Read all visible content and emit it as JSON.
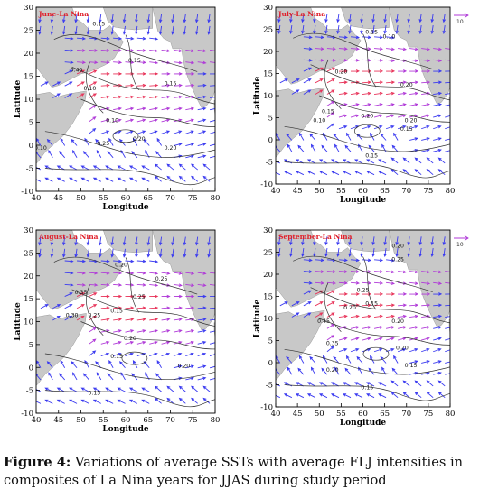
{
  "caption": {
    "label": "Figure 4:",
    "text": " Variations of average SSTs with average FLJ intensities in composites of La Nina years for JJAS during study period"
  },
  "colors": {
    "land": "#c8c8c8",
    "vector_blue": "#3a3af0",
    "vector_red": "#e8345a",
    "vector_magenta": "#b03ad8",
    "panel_title": "#e0202a",
    "contour": "#333333"
  },
  "chart_data": [
    {
      "type": "contour+vector",
      "title": "June-La Nina",
      "xlabel": "Longitude",
      "ylabel": "Latitude",
      "xlim": [
        40,
        80
      ],
      "ylim": [
        -10,
        30
      ],
      "xticks": [
        40,
        45,
        50,
        55,
        60,
        65,
        70,
        75,
        80
      ],
      "yticks": [
        30,
        25,
        20,
        15,
        10,
        5,
        0,
        -5,
        -10
      ],
      "reference_vector": null,
      "contour_labels": [
        {
          "value": "0.15",
          "lon": 54,
          "lat": 26
        },
        {
          "value": "0.15",
          "lon": 62,
          "lat": 18
        },
        {
          "value": "0.45",
          "lon": 49,
          "lat": 16
        },
        {
          "value": "0.10",
          "lon": 52,
          "lat": 12
        },
        {
          "value": "0.15",
          "lon": 70,
          "lat": 13
        },
        {
          "value": "0.10",
          "lon": 57,
          "lat": 5
        },
        {
          "value": "0.20",
          "lon": 63,
          "lat": 1
        },
        {
          "value": "0.25",
          "lon": 55,
          "lat": 0
        },
        {
          "value": "0.20",
          "lon": 70,
          "lat": -1
        },
        {
          "value": "0.10",
          "lon": 41,
          "lat": -1
        }
      ]
    },
    {
      "type": "contour+vector",
      "title": "July-La Nina",
      "xlabel": "Longitude",
      "ylabel": "Latitude",
      "xlim": [
        40,
        80
      ],
      "ylim": [
        -10,
        30
      ],
      "xticks": [
        40,
        45,
        50,
        55,
        60,
        65,
        70,
        75,
        80
      ],
      "yticks": [
        30,
        25,
        20,
        15,
        10,
        5,
        0,
        -5,
        -10
      ],
      "reference_vector": "10",
      "contour_labels": [
        {
          "value": "0.15",
          "lon": 62,
          "lat": 24
        },
        {
          "value": "0.10",
          "lon": 66,
          "lat": 23
        },
        {
          "value": "0.20",
          "lon": 55,
          "lat": 15
        },
        {
          "value": "0.20",
          "lon": 70,
          "lat": 12
        },
        {
          "value": "0.15",
          "lon": 52,
          "lat": 6
        },
        {
          "value": "0.20",
          "lon": 61,
          "lat": 5
        },
        {
          "value": "0.10",
          "lon": 50,
          "lat": 4
        },
        {
          "value": "0.15",
          "lon": 70,
          "lat": 2
        },
        {
          "value": "0.20",
          "lon": 71,
          "lat": 4
        },
        {
          "value": "0.15",
          "lon": 62,
          "lat": -4
        }
      ]
    },
    {
      "type": "contour+vector",
      "title": "August-La Nina",
      "xlabel": "Longitude",
      "ylabel": "Latitude",
      "xlim": [
        40,
        80
      ],
      "ylim": [
        -10,
        30
      ],
      "xticks": [
        40,
        45,
        50,
        55,
        60,
        65,
        70,
        75,
        80
      ],
      "yticks": [
        30,
        25,
        20,
        15,
        10,
        5,
        0,
        -5,
        -10
      ],
      "reference_vector": null,
      "contour_labels": [
        {
          "value": "0.20",
          "lon": 59,
          "lat": 22
        },
        {
          "value": "0.25",
          "lon": 68,
          "lat": 19
        },
        {
          "value": "0.35",
          "lon": 50,
          "lat": 16
        },
        {
          "value": "0.30",
          "lon": 48,
          "lat": 11
        },
        {
          "value": "0.25",
          "lon": 53,
          "lat": 11
        },
        {
          "value": "0.15",
          "lon": 58,
          "lat": 12
        },
        {
          "value": "0.25",
          "lon": 63,
          "lat": 15
        },
        {
          "value": "0.20",
          "lon": 61,
          "lat": 6
        },
        {
          "value": "0.15",
          "lon": 58,
          "lat": 2
        },
        {
          "value": "0.20",
          "lon": 73,
          "lat": 0
        },
        {
          "value": "0.15",
          "lon": 53,
          "lat": -6
        }
      ]
    },
    {
      "type": "contour+vector",
      "title": "September-La Nina",
      "xlabel": "Longitude",
      "ylabel": "Latitude",
      "xlim": [
        40,
        80
      ],
      "ylim": [
        -10,
        30
      ],
      "xticks": [
        40,
        45,
        50,
        55,
        60,
        65,
        70,
        75,
        80
      ],
      "yticks": [
        30,
        25,
        20,
        15,
        10,
        5,
        0,
        -5,
        -10
      ],
      "reference_vector": "10",
      "contour_labels": [
        {
          "value": "0.20",
          "lon": 68,
          "lat": 26
        },
        {
          "value": "0.25",
          "lon": 68,
          "lat": 23
        },
        {
          "value": "0.25",
          "lon": 60,
          "lat": 16
        },
        {
          "value": "0.20",
          "lon": 57,
          "lat": 12
        },
        {
          "value": "0.15",
          "lon": 62,
          "lat": 13
        },
        {
          "value": "0.20",
          "lon": 68,
          "lat": 9
        },
        {
          "value": "0.45",
          "lon": 51,
          "lat": 9
        },
        {
          "value": "0.35",
          "lon": 53,
          "lat": 4
        },
        {
          "value": "0.20",
          "lon": 69,
          "lat": 3
        },
        {
          "value": "0.15",
          "lon": 71,
          "lat": -1
        },
        {
          "value": "0.20",
          "lon": 53,
          "lat": -2
        },
        {
          "value": "0.15",
          "lon": 61,
          "lat": -6
        }
      ]
    }
  ]
}
